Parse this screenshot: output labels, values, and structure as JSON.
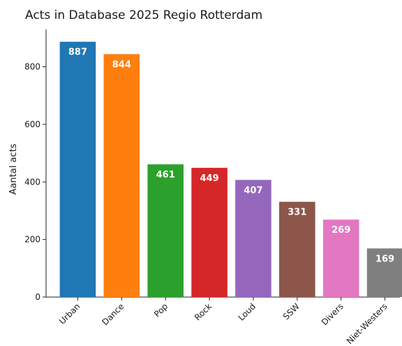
{
  "chart_data": {
    "type": "bar",
    "title": "Acts in Database 2025  Regio Rotterdam",
    "xlabel": "",
    "ylabel": "Aantal acts",
    "ylim": [
      0,
      930
    ],
    "yticks": [
      0,
      200,
      400,
      600,
      800
    ],
    "categories": [
      "Urban",
      "Dance",
      "Pop",
      "Rock",
      "Loud",
      "SSW",
      "Divers",
      "Niet-Westers"
    ],
    "values": [
      887,
      844,
      461,
      449,
      407,
      331,
      269,
      169
    ],
    "colors": [
      "#1f77b4",
      "#ff7f0e",
      "#2ca02c",
      "#d62728",
      "#9467bd",
      "#8c564b",
      "#e377c2",
      "#7f7f7f"
    ],
    "grid": false,
    "legend": "none"
  }
}
